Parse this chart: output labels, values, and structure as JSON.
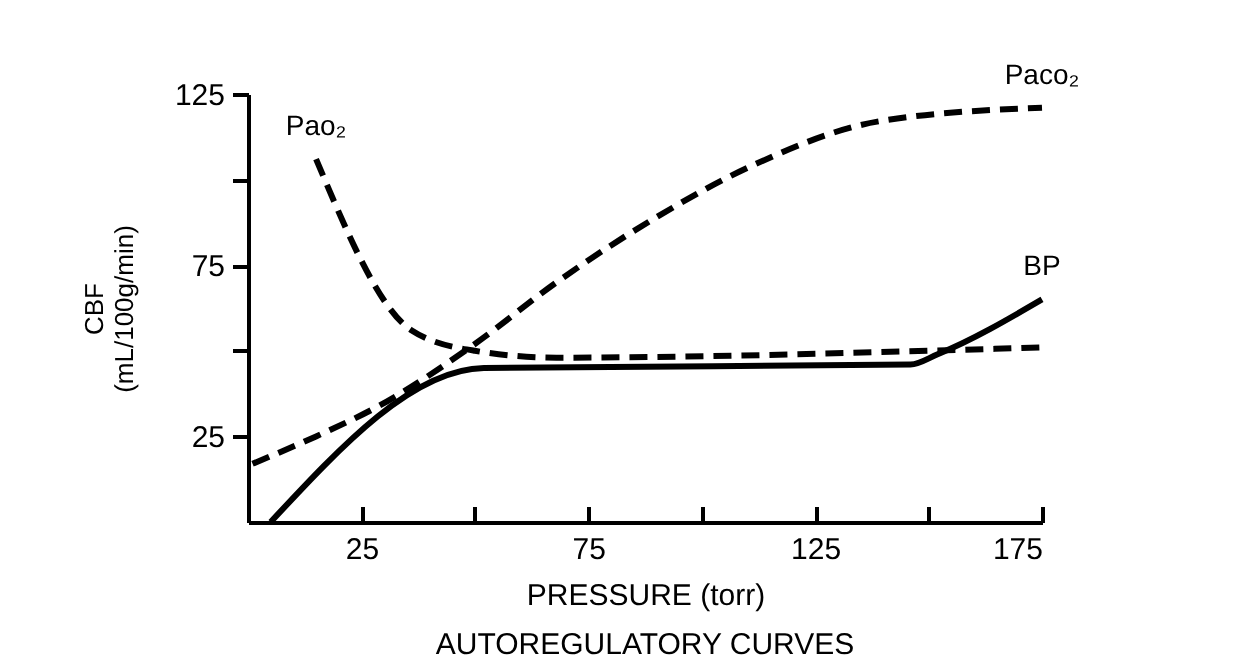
{
  "chart_data": {
    "type": "line",
    "title": "AUTOREGULATORY CURVES",
    "xlabel": "PRESSURE (torr)",
    "ylabel": "CBF\n(mL/100g/min)",
    "xlim": [
      0,
      175
    ],
    "xticks": [
      25,
      {
        "value": 50,
        "label": null
      },
      75,
      {
        "value": 100,
        "label": null
      },
      125,
      {
        "value": 150,
        "label": null
      },
      175
    ],
    "ylim": [
      0,
      125
    ],
    "yticks": [
      25,
      {
        "value": 50,
        "label": null
      },
      75,
      {
        "value": 100,
        "label": null
      },
      125
    ],
    "grid": false,
    "marker": "none",
    "series": [
      {
        "name": "Paco₂",
        "color": "#000000",
        "line_style": "dashed",
        "x": [
          1,
          15,
          29,
          50,
          68,
          90,
          111,
          139,
          175
        ],
        "values": [
          17,
          25,
          34,
          52,
          70,
          89,
          104,
          117,
          121
        ]
      },
      {
        "name": "Pao₂",
        "color": "#000000",
        "line_style": "dashed",
        "x": [
          15,
          36,
          50,
          68,
          150,
          175
        ],
        "values": [
          106,
          56,
          50,
          48,
          50,
          51
        ]
      },
      {
        "name": "BP",
        "color": "#000000",
        "line_style": "solid",
        "x": [
          5,
          52,
          146,
          152,
          175
        ],
        "values": [
          0,
          45,
          46,
          49,
          65
        ]
      }
    ]
  }
}
